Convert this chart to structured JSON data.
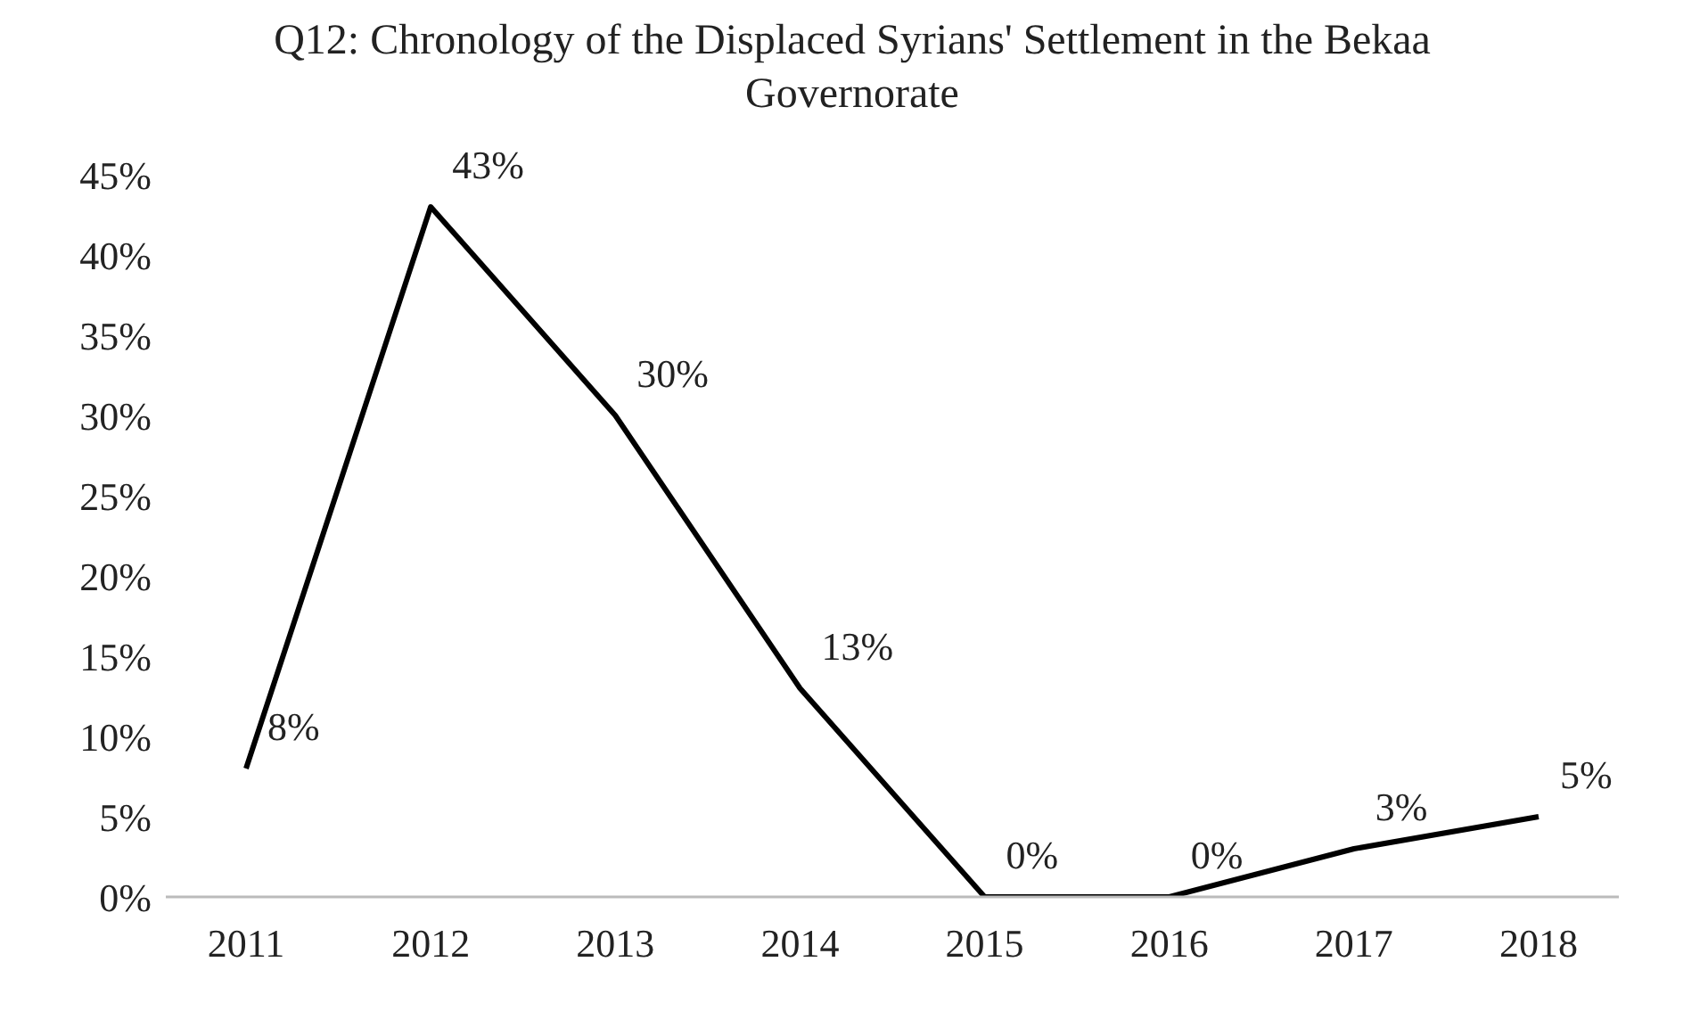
{
  "chart_data": {
    "type": "line",
    "title": "Q12: Chronology of the Displaced Syrians' Settlement in the Bekaa Governorate",
    "categories": [
      "2011",
      "2012",
      "2013",
      "2014",
      "2015",
      "2016",
      "2017",
      "2018"
    ],
    "series": [
      {
        "color": "#000000",
        "values": [
          8,
          43,
          30,
          13,
          0,
          0,
          3,
          5
        ],
        "value_labels": [
          "8%",
          "43%",
          "30%",
          "13%",
          "0%",
          "0%",
          "3%",
          "5%"
        ]
      }
    ],
    "ylim": [
      0,
      45
    ],
    "yticks": [
      {
        "value": 0,
        "label": "0%"
      },
      {
        "value": 5,
        "label": "5%"
      },
      {
        "value": 10,
        "label": "10%"
      },
      {
        "value": 15,
        "label": "15%"
      },
      {
        "value": 20,
        "label": "20%"
      },
      {
        "value": 25,
        "label": "25%"
      },
      {
        "value": 30,
        "label": "30%"
      },
      {
        "value": 35,
        "label": "35%"
      },
      {
        "value": 40,
        "label": "40%"
      },
      {
        "value": 45,
        "label": "45%"
      }
    ],
    "grid": false,
    "legend": false,
    "marker": "none",
    "line_style": "solid"
  }
}
